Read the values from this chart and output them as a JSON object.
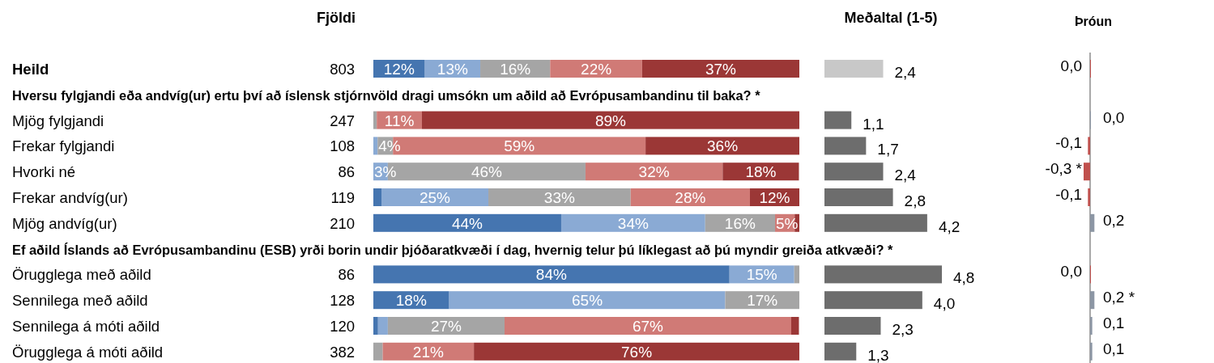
{
  "chart_data": [
    {
      "type": "bar",
      "orientation": "horizontal",
      "stacked": true,
      "title": "Fjöldi",
      "tick_labels": "y",
      "xlim": [
        0,
        100
      ],
      "categories": [
        "Heild",
        "Hversu fylgjandi eða andvíg(ur) ertu því að íslensk stjórnvöld dragi umsókn um aðild að Evrópusambandinu til baka? *",
        "Mjög fylgjandi",
        "Frekar fylgjandi",
        "Hvorki né",
        "Frekar andvíg(ur)",
        "Mjög andvíg(ur)",
        "Ef aðild Íslands að Evrópusambandinu (ESB) yrði borin undir þjóðaratkvæði í dag, hvernig telur þú líklegast að þú myndir greiða atkvæði? *",
        "Örugglega með aðild",
        "Sennilega með aðild",
        "Sennilega á móti aðild",
        "Örugglega á móti aðild"
      ],
      "y2_categories": [
        "803",
        null,
        "247",
        "108",
        "86",
        "119",
        "210",
        null,
        "86",
        "128",
        "120",
        "382"
      ],
      "series": [
        {
          "color": "#4575b0",
          "values": [
            12.1,
            null,
            0,
            0,
            0,
            1.9,
            44.1,
            null,
            83.6,
            17.8,
            1.1,
            0
          ],
          "value_labels": [
            "12%",
            null,
            null,
            null,
            null,
            null,
            "44%",
            null,
            "84%",
            "18%",
            null,
            null
          ]
        },
        {
          "color": "#8aaad4",
          "values": [
            13.0,
            null,
            0,
            1,
            3.4,
            25.1,
            33.8,
            null,
            15.2,
            64.8,
            2.3,
            0
          ],
          "value_labels": [
            "13%",
            null,
            null,
            null,
            "3%",
            "25%",
            "34%",
            null,
            "15%",
            "65%",
            null,
            null
          ]
        },
        {
          "color": "#a5a5a5",
          "values": [
            16.4,
            null,
            0.8,
            3.6,
            46.4,
            33.4,
            16.4,
            null,
            1.2,
            17.4,
            27.4,
            2.2
          ],
          "value_labels": [
            "16%",
            null,
            null,
            "4%",
            "46%",
            "33%",
            "16%",
            null,
            null,
            "17%",
            "27%",
            null
          ]
        },
        {
          "color": "#d07a76",
          "values": [
            21.6,
            null,
            10.6,
            59.3,
            32.2,
            28.0,
            4.6,
            null,
            0,
            0,
            67.3,
            21.4
          ],
          "value_labels": [
            "22%",
            null,
            "11%",
            "59%",
            "32%",
            "28%",
            "5%",
            null,
            null,
            null,
            "67%",
            "21%"
          ]
        },
        {
          "color": "#9b3736",
          "values": [
            36.9,
            null,
            88.6,
            36.1,
            17.9,
            11.6,
            1.1,
            null,
            0,
            0,
            1.8,
            76.4
          ],
          "value_labels": [
            "37%",
            null,
            "89%",
            "36%",
            "18%",
            "12%",
            null,
            null,
            null,
            null,
            null,
            "76%"
          ]
        }
      ]
    },
    {
      "type": "bar",
      "orientation": "horizontal",
      "title": "Meðaltal (1-5)",
      "tick_labels": false,
      "categories": [
        null,
        null,
        null,
        null,
        null,
        null,
        null,
        null,
        null,
        null,
        null,
        null
      ],
      "values": [
        2.4,
        null,
        1.1,
        1.7,
        2.4,
        2.8,
        4.2,
        null,
        4.8,
        4.0,
        2.3,
        1.3
      ],
      "colors": [
        "#c8c8c8",
        null,
        "#6d6d6d",
        "#6d6d6d",
        "#6d6d6d",
        "#6d6d6d",
        "#6d6d6d",
        null,
        "#6d6d6d",
        "#6d6d6d",
        "#6d6d6d",
        "#6d6d6d"
      ],
      "value_labels": [
        "2,4",
        null,
        "1,1",
        "1,7",
        "2,4",
        "2,8",
        "4,2",
        null,
        "4,8",
        "4,0",
        "2,3",
        "1,3"
      ]
    },
    {
      "type": "bar",
      "orientation": "horizontal",
      "title": "Þróun",
      "tick_labels": false,
      "categories": [
        null,
        null,
        null,
        null,
        null,
        null,
        null,
        null,
        null,
        null,
        null,
        null
      ],
      "values": [
        0.0,
        null,
        0.0,
        -0.1,
        -0.3,
        -0.1,
        0.2,
        null,
        0.0,
        0.2,
        0.1,
        0.1
      ],
      "colors": [
        "#c0504d",
        null,
        "#8c96a4",
        "#c0504d",
        "#c0504d",
        "#c0504d",
        "#8c96a4",
        null,
        "#c0504d",
        "#8c96a4",
        "#8c96a4",
        "#8c96a4"
      ],
      "value_labels": [
        "0,0",
        null,
        "0,0",
        "-0,1",
        "-0,3 *",
        "-0,1",
        "0,2",
        null,
        "0,0",
        "0,2 *",
        "0,1",
        "0,1"
      ]
    }
  ]
}
